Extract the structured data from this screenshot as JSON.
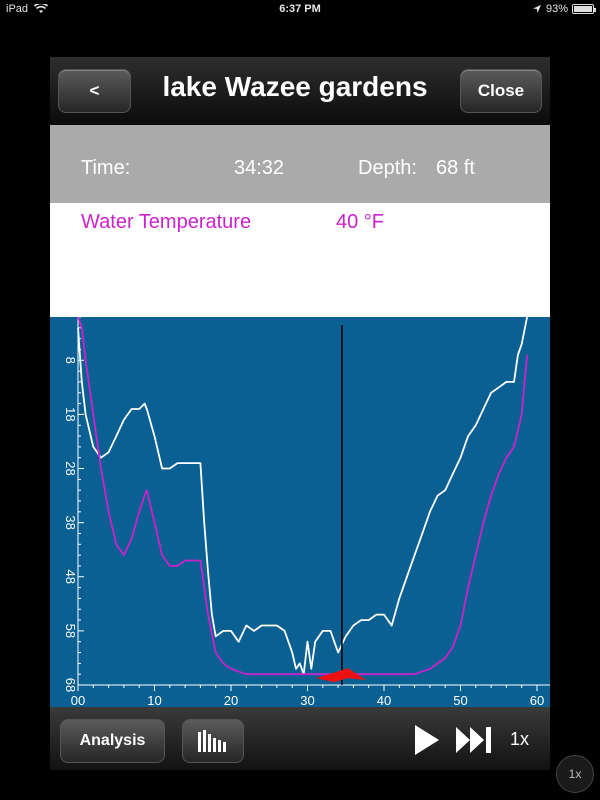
{
  "statusbar": {
    "device": "iPad",
    "time": "6:37 PM",
    "battery": "93%"
  },
  "header": {
    "back_label": "<",
    "title": "lake Wazee gardens",
    "close_label": "Close"
  },
  "info": {
    "time_label": "Time:",
    "time_value": "34:32",
    "depth_label": "Depth:",
    "depth_value": "68 ft"
  },
  "legend": {
    "series_label": "Water Temperature",
    "series_value": "40 °F",
    "series_color": "#cc22cc"
  },
  "toolbar": {
    "analysis_label": "Analysis",
    "speed_label": "1x"
  },
  "floating_button": {
    "label": "1x"
  },
  "chart_data": {
    "type": "line",
    "xlim": [
      0,
      60
    ],
    "ylim": [
      68,
      0
    ],
    "x_ticks": [
      "00",
      "10",
      "20",
      "30",
      "40",
      "50",
      "60"
    ],
    "y_ticks": [
      "8",
      "18",
      "28",
      "38",
      "48",
      "58",
      "68"
    ],
    "cursor_x": 34.5,
    "series": [
      {
        "color": "#ffffff",
        "x": [
          0,
          0.5,
          1,
          2,
          3,
          4,
          5,
          6,
          7,
          8,
          8.7,
          9,
          10,
          11,
          12,
          13,
          14,
          15,
          16,
          16.5,
          17,
          17.5,
          18,
          19,
          20,
          21,
          22,
          23,
          24,
          25,
          26,
          27,
          28,
          28.5,
          29,
          29.5,
          30,
          30.5,
          31,
          32,
          33,
          34,
          35,
          36,
          37,
          38,
          39,
          40,
          41,
          42,
          43,
          44,
          45,
          46,
          47,
          48,
          49,
          50,
          51,
          52,
          53,
          54,
          55,
          56,
          57,
          57.5,
          58,
          58.7
        ],
        "values": [
          2,
          12,
          18,
          24,
          26,
          25,
          22,
          19,
          17,
          17,
          16,
          17,
          22,
          28,
          28,
          27,
          27,
          27,
          27,
          38,
          47,
          55,
          59,
          58,
          58,
          60,
          57,
          58,
          57,
          57,
          57,
          58,
          62,
          65,
          64,
          66,
          60,
          65,
          60,
          58,
          58,
          62,
          59,
          57,
          56,
          56,
          55,
          55,
          57,
          52,
          48,
          44,
          40,
          36,
          33,
          32,
          29,
          26,
          22,
          20,
          17,
          14,
          13,
          12,
          12,
          7,
          5,
          0
        ]
      },
      {
        "color": "#cc22cc",
        "x": [
          0,
          0.5,
          1,
          2,
          3,
          4,
          5,
          6,
          7,
          8,
          8.7,
          9,
          10,
          11,
          12,
          13,
          14,
          15,
          16,
          17,
          18,
          19,
          20,
          22,
          25,
          28,
          30,
          32,
          34,
          36,
          38,
          40,
          42,
          44,
          46,
          47,
          48,
          49,
          50,
          51,
          52,
          53,
          54,
          55,
          56,
          57,
          58,
          58.7
        ],
        "values": [
          0,
          2,
          8,
          18,
          28,
          36,
          42,
          44,
          41,
          36,
          33,
          32,
          38,
          44,
          46,
          46,
          45,
          45,
          45,
          55,
          62,
          64,
          65,
          66,
          66,
          66,
          66,
          66,
          66,
          66,
          66,
          66,
          66,
          66,
          65,
          64,
          63,
          61,
          57,
          50,
          44,
          38,
          33,
          29,
          26,
          24,
          18,
          7
        ]
      }
    ]
  }
}
